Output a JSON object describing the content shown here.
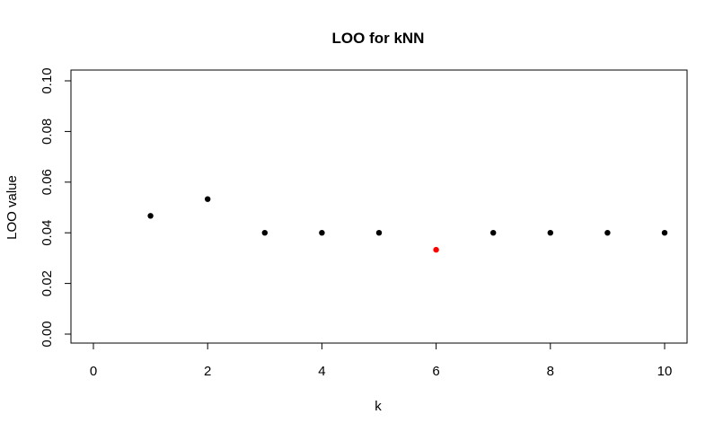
{
  "chart_data": {
    "type": "scatter",
    "title": "LOO for kNN",
    "xlabel": "k",
    "ylabel": "LOO value",
    "xlim": [
      0,
      10
    ],
    "ylim": [
      0,
      0.1
    ],
    "x_ticks": [
      "0",
      "2",
      "4",
      "6",
      "8",
      "10"
    ],
    "y_ticks": [
      "0.00",
      "0.02",
      "0.04",
      "0.06",
      "0.08",
      "0.10"
    ],
    "grid": false,
    "legend": "none",
    "series": [
      {
        "x": [
          1,
          2,
          3,
          4,
          5,
          6,
          7,
          8,
          9,
          10
        ],
        "y": [
          0.0467,
          0.0533,
          0.04,
          0.04,
          0.04,
          0.0333,
          0.04,
          0.04,
          0.04,
          0.04
        ],
        "colors": [
          "#000000",
          "#000000",
          "#000000",
          "#000000",
          "#000000",
          "#ff0000",
          "#000000",
          "#000000",
          "#000000",
          "#000000"
        ]
      }
    ]
  }
}
